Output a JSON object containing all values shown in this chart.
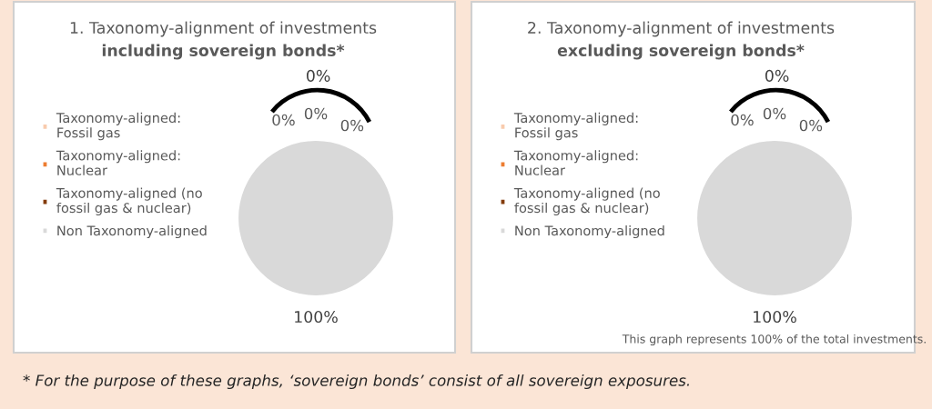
{
  "chart_data": [
    {
      "type": "pie",
      "title": "1. Taxonomy-alignment of investments",
      "subtitle": "including sovereign bonds*",
      "categories": [
        "Taxonomy-aligned:\nFossil gas",
        "Taxonomy-aligned:\nNuclear",
        "Taxonomy-aligned (no\nfossil gas & nuclear)",
        "Non Taxonomy-aligned"
      ],
      "values": [
        0,
        0,
        0,
        100
      ],
      "colors": [
        "#f8cbad",
        "#ed7d31",
        "#843c0c",
        "#d9d9d9"
      ],
      "value_labels": [
        "0%",
        "0%",
        "0%",
        "100%"
      ],
      "legend": "left",
      "annotations": [
        "0%"
      ]
    },
    {
      "type": "pie",
      "title": "2. Taxonomy-alignment of investments",
      "subtitle": "excluding sovereign bonds*",
      "categories": [
        "Taxonomy-aligned:\nFossil gas",
        "Taxonomy-aligned:\nNuclear",
        "Taxonomy-aligned (no\nfossil gas & nuclear)",
        "Non Taxonomy-aligned"
      ],
      "values": [
        0,
        0,
        0,
        100
      ],
      "colors": [
        "#f8cbad",
        "#ed7d31",
        "#843c0c",
        "#d9d9d9"
      ],
      "value_labels": [
        "0%",
        "0%",
        "0%",
        "100%"
      ],
      "legend": "left",
      "annotations": [
        "0%",
        "This graph represents 100% of the total investments.",
        "* For the purpose of these graphs, ‘sovereign bonds’ consist of all sovereign exposures."
      ]
    }
  ]
}
